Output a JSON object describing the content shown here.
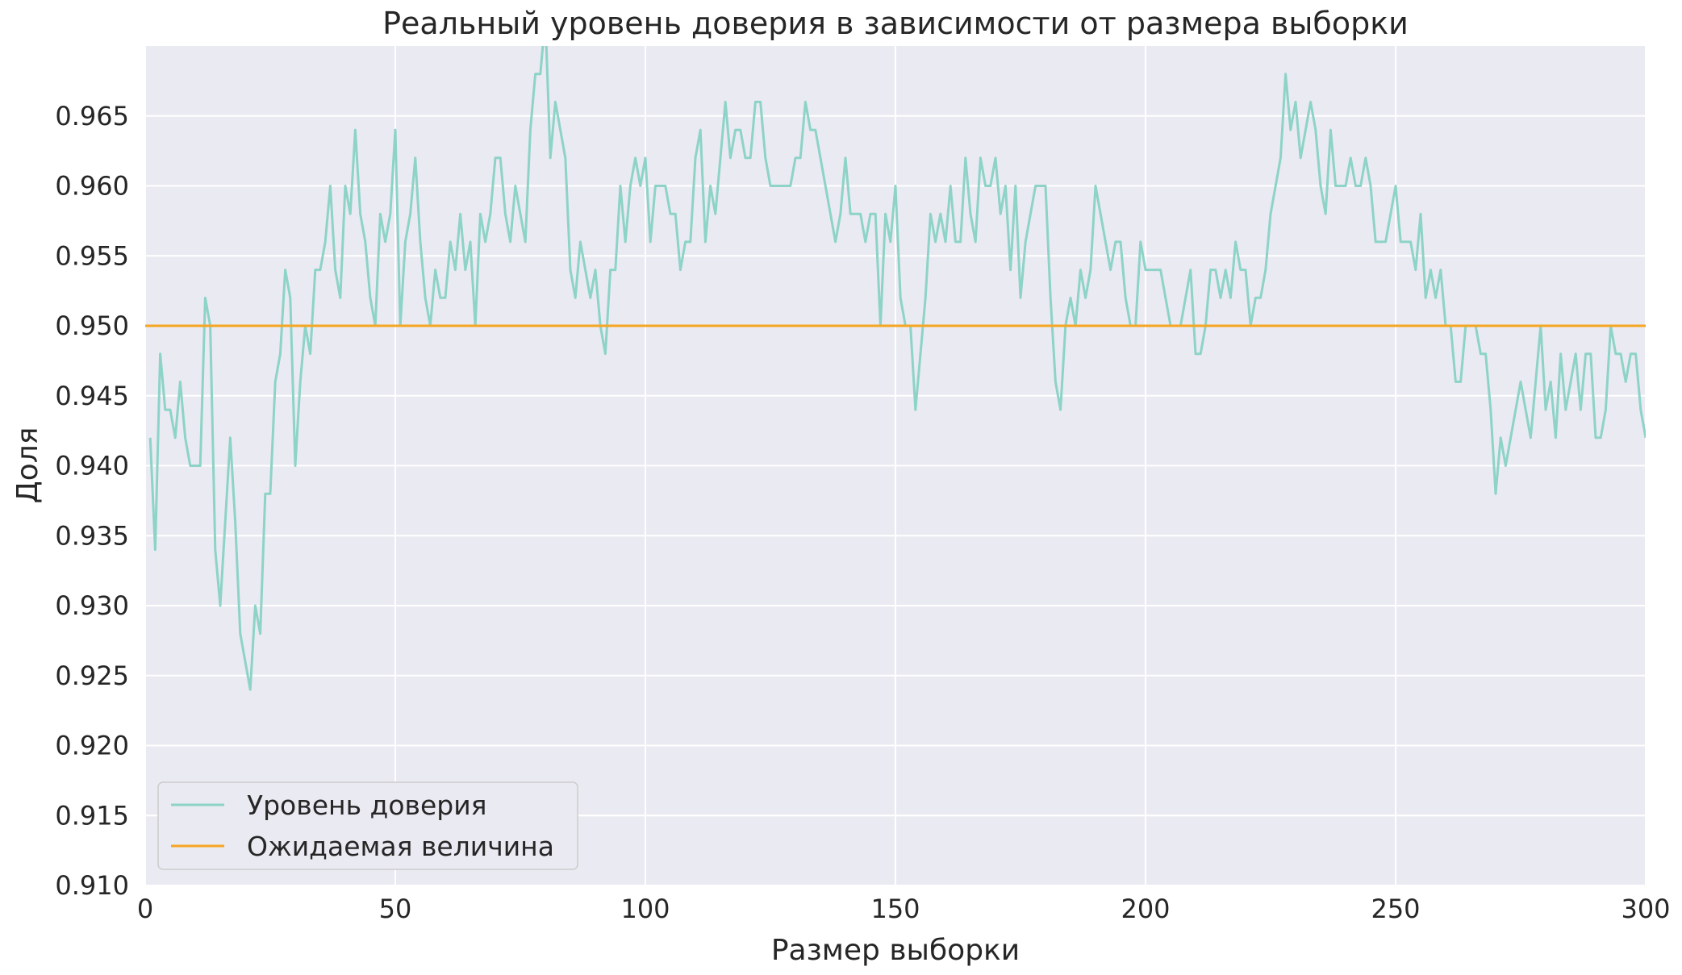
{
  "chart_data": {
    "type": "line",
    "title": "Реальный уровень доверия в зависимости от размера выборки",
    "xlabel": "Размер выборки",
    "ylabel": "Доля",
    "xlim": [
      0,
      300
    ],
    "ylim": [
      0.91,
      0.97
    ],
    "xticks": [
      "0",
      "50",
      "100",
      "150",
      "200",
      "250",
      "300"
    ],
    "yticks": [
      "0.910",
      "0.915",
      "0.920",
      "0.925",
      "0.930",
      "0.935",
      "0.940",
      "0.945",
      "0.950",
      "0.955",
      "0.960",
      "0.965"
    ],
    "grid": true,
    "legend_position": "lower-left",
    "series": [
      {
        "name": "Уровень доверия",
        "color": "#8dd3c7",
        "x_start": 1,
        "values": [
          0.942,
          0.934,
          0.948,
          0.944,
          0.944,
          0.942,
          0.946,
          0.942,
          0.94,
          0.94,
          0.94,
          0.952,
          0.95,
          0.934,
          0.93,
          0.936,
          0.942,
          0.936,
          0.928,
          0.926,
          0.924,
          0.93,
          0.928,
          0.938,
          0.938,
          0.946,
          0.948,
          0.954,
          0.952,
          0.94,
          0.946,
          0.95,
          0.948,
          0.954,
          0.954,
          0.956,
          0.96,
          0.954,
          0.952,
          0.96,
          0.958,
          0.964,
          0.958,
          0.956,
          0.952,
          0.95,
          0.958,
          0.956,
          0.958,
          0.964,
          0.95,
          0.956,
          0.958,
          0.962,
          0.956,
          0.952,
          0.95,
          0.954,
          0.952,
          0.952,
          0.956,
          0.954,
          0.958,
          0.954,
          0.956,
          0.95,
          0.958,
          0.956,
          0.958,
          0.962,
          0.962,
          0.958,
          0.956,
          0.96,
          0.958,
          0.956,
          0.964,
          0.968,
          0.968,
          0.972,
          0.962,
          0.966,
          0.964,
          0.962,
          0.954,
          0.952,
          0.956,
          0.954,
          0.952,
          0.954,
          0.95,
          0.948,
          0.954,
          0.954,
          0.96,
          0.956,
          0.96,
          0.962,
          0.96,
          0.962,
          0.956,
          0.96,
          0.96,
          0.96,
          0.958,
          0.958,
          0.954,
          0.956,
          0.956,
          0.962,
          0.964,
          0.956,
          0.96,
          0.958,
          0.962,
          0.966,
          0.962,
          0.964,
          0.964,
          0.962,
          0.962,
          0.966,
          0.966,
          0.962,
          0.96,
          0.96,
          0.96,
          0.96,
          0.96,
          0.962,
          0.962,
          0.966,
          0.964,
          0.964,
          0.962,
          0.96,
          0.958,
          0.956,
          0.958,
          0.962,
          0.958,
          0.958,
          0.958,
          0.956,
          0.958,
          0.958,
          0.95,
          0.958,
          0.956,
          0.96,
          0.952,
          0.95,
          0.95,
          0.944,
          0.948,
          0.952,
          0.958,
          0.956,
          0.958,
          0.956,
          0.96,
          0.956,
          0.956,
          0.962,
          0.958,
          0.956,
          0.962,
          0.96,
          0.96,
          0.962,
          0.958,
          0.96,
          0.954,
          0.96,
          0.952,
          0.956,
          0.958,
          0.96,
          0.96,
          0.96,
          0.952,
          0.946,
          0.944,
          0.95,
          0.952,
          0.95,
          0.954,
          0.952,
          0.954,
          0.96,
          0.958,
          0.956,
          0.954,
          0.956,
          0.956,
          0.952,
          0.95,
          0.95,
          0.956,
          0.954,
          0.954,
          0.954,
          0.954,
          0.952,
          0.95,
          0.95,
          0.95,
          0.952,
          0.954,
          0.948,
          0.948,
          0.95,
          0.954,
          0.954,
          0.952,
          0.954,
          0.952,
          0.956,
          0.954,
          0.954,
          0.95,
          0.952,
          0.952,
          0.954,
          0.958,
          0.96,
          0.962,
          0.968,
          0.964,
          0.966,
          0.962,
          0.964,
          0.966,
          0.964,
          0.96,
          0.958,
          0.964,
          0.96,
          0.96,
          0.96,
          0.962,
          0.96,
          0.96,
          0.962,
          0.96,
          0.956,
          0.956,
          0.956,
          0.958,
          0.96,
          0.956,
          0.956,
          0.956,
          0.954,
          0.958,
          0.952,
          0.954,
          0.952,
          0.954,
          0.95,
          0.95,
          0.946,
          0.946,
          0.95,
          0.95,
          0.95,
          0.948,
          0.948,
          0.944,
          0.938,
          0.942,
          0.94,
          0.942,
          0.944,
          0.946,
          0.944,
          0.942,
          0.946,
          0.95,
          0.944,
          0.946,
          0.942,
          0.948,
          0.944,
          0.946,
          0.948,
          0.944,
          0.948,
          0.948,
          0.942,
          0.942,
          0.944,
          0.95,
          0.948,
          0.948,
          0.946,
          0.948,
          0.948,
          0.944,
          0.942
        ]
      },
      {
        "name": "Ожидаемая величина",
        "color": "#f5a623",
        "x_start": 1,
        "constant": 0.95
      }
    ]
  }
}
